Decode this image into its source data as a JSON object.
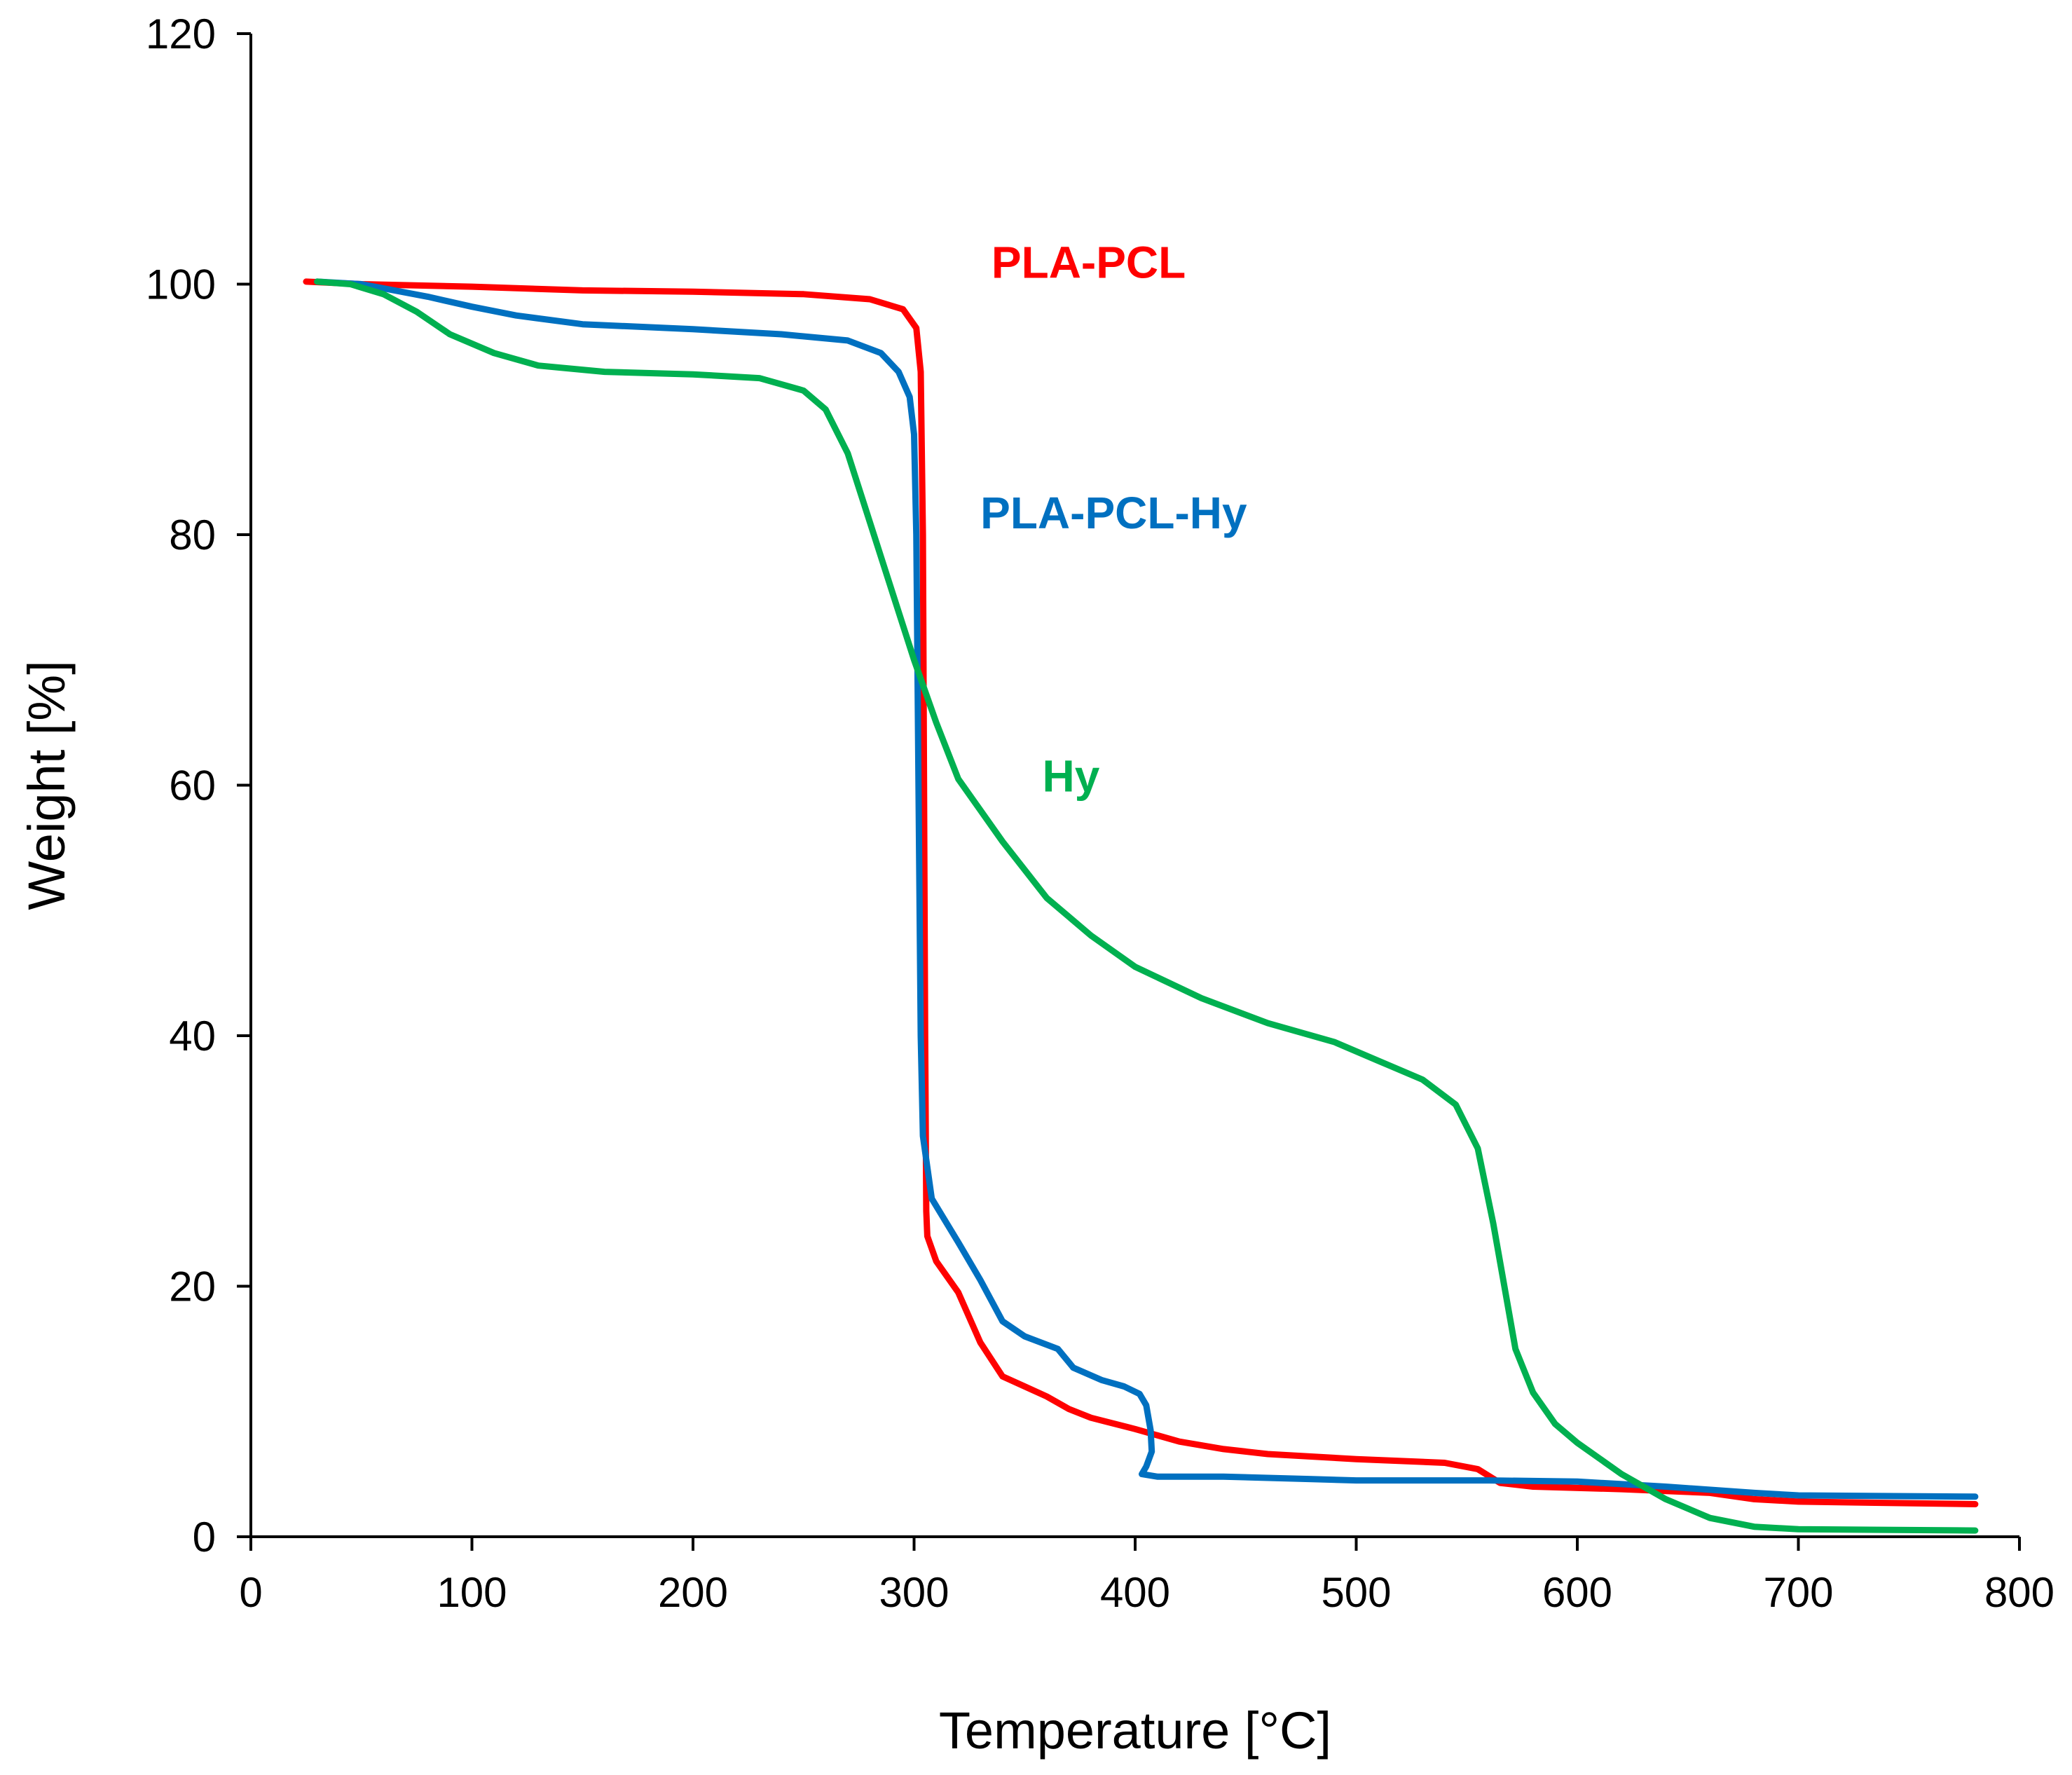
{
  "chart_data": {
    "type": "line",
    "title": "",
    "xlabel": "Temperature [°C]",
    "ylabel": "Weight [%]",
    "xlim": [
      0,
      800
    ],
    "ylim": [
      0,
      120
    ],
    "xticks": [
      0,
      100,
      200,
      300,
      400,
      500,
      600,
      700,
      800
    ],
    "yticks": [
      0,
      20,
      40,
      60,
      80,
      100,
      120
    ],
    "xtick_labels": [
      "0",
      "100",
      "200",
      "300",
      "400",
      "500",
      "600",
      "700",
      "800"
    ],
    "ytick_labels": [
      "0",
      "20",
      "40",
      "60",
      "80",
      "100",
      "120"
    ],
    "grid": false,
    "legend": "inline labels",
    "series": [
      {
        "name": "PLA-PCL",
        "color": "#ff0000",
        "label_at": [
          335,
          100.5
        ],
        "points": [
          [
            25,
            100.2
          ],
          [
            50,
            100
          ],
          [
            100,
            99.8
          ],
          [
            150,
            99.5
          ],
          [
            200,
            99.4
          ],
          [
            250,
            99.2
          ],
          [
            280,
            98.8
          ],
          [
            295,
            98
          ],
          [
            301,
            96.5
          ],
          [
            303,
            93
          ],
          [
            304,
            80
          ],
          [
            304.5,
            60
          ],
          [
            305,
            40
          ],
          [
            305.5,
            26
          ],
          [
            306,
            24
          ],
          [
            310,
            22
          ],
          [
            320,
            19.5
          ],
          [
            330,
            15.5
          ],
          [
            340,
            12.8
          ],
          [
            350,
            12
          ],
          [
            360,
            11.2
          ],
          [
            370,
            10.2
          ],
          [
            380,
            9.5
          ],
          [
            400,
            8.6
          ],
          [
            420,
            7.6
          ],
          [
            440,
            7
          ],
          [
            460,
            6.6
          ],
          [
            500,
            6.2
          ],
          [
            540,
            5.9
          ],
          [
            555,
            5.4
          ],
          [
            565,
            4.3
          ],
          [
            580,
            4
          ],
          [
            620,
            3.8
          ],
          [
            660,
            3.5
          ],
          [
            680,
            3
          ],
          [
            700,
            2.8
          ],
          [
            780,
            2.6
          ]
        ]
      },
      {
        "name": "PLA-PCL-Hy",
        "color": "#0070c0",
        "label_at": [
          330,
          80.5
        ],
        "points": [
          [
            30,
            100.2
          ],
          [
            50,
            100
          ],
          [
            80,
            99
          ],
          [
            100,
            98.2
          ],
          [
            120,
            97.5
          ],
          [
            150,
            96.8
          ],
          [
            200,
            96.4
          ],
          [
            240,
            96
          ],
          [
            270,
            95.5
          ],
          [
            285,
            94.5
          ],
          [
            293,
            93
          ],
          [
            298,
            91
          ],
          [
            300,
            88
          ],
          [
            301,
            80
          ],
          [
            302,
            60
          ],
          [
            303,
            40
          ],
          [
            304,
            32
          ],
          [
            308,
            27
          ],
          [
            320,
            23.5
          ],
          [
            330,
            20.5
          ],
          [
            340,
            17.2
          ],
          [
            350,
            16
          ],
          [
            365,
            15
          ],
          [
            372,
            13.5
          ],
          [
            385,
            12.5
          ],
          [
            395,
            12
          ],
          [
            402,
            11.4
          ],
          [
            405,
            10.5
          ],
          [
            407,
            8.5
          ],
          [
            407.5,
            6.8
          ],
          [
            405,
            5.6
          ],
          [
            403,
            5
          ],
          [
            410,
            4.8
          ],
          [
            440,
            4.8
          ],
          [
            480,
            4.6
          ],
          [
            500,
            4.5
          ],
          [
            560,
            4.5
          ],
          [
            600,
            4.4
          ],
          [
            640,
            4
          ],
          [
            680,
            3.5
          ],
          [
            700,
            3.3
          ],
          [
            780,
            3.2
          ]
        ]
      },
      {
        "name": "Hy",
        "color": "#00b050",
        "label_at": [
          358,
          59.5
        ],
        "points": [
          [
            30,
            100.2
          ],
          [
            45,
            100
          ],
          [
            60,
            99.2
          ],
          [
            75,
            97.8
          ],
          [
            90,
            96
          ],
          [
            110,
            94.5
          ],
          [
            130,
            93.5
          ],
          [
            160,
            93
          ],
          [
            200,
            92.8
          ],
          [
            230,
            92.5
          ],
          [
            250,
            91.5
          ],
          [
            260,
            90
          ],
          [
            270,
            86.5
          ],
          [
            280,
            81
          ],
          [
            290,
            75.5
          ],
          [
            300,
            70
          ],
          [
            310,
            65
          ],
          [
            320,
            60.5
          ],
          [
            340,
            55.5
          ],
          [
            360,
            51
          ],
          [
            380,
            48
          ],
          [
            400,
            45.5
          ],
          [
            430,
            43
          ],
          [
            460,
            41
          ],
          [
            490,
            39.5
          ],
          [
            510,
            38
          ],
          [
            530,
            36.5
          ],
          [
            545,
            34.5
          ],
          [
            555,
            31
          ],
          [
            562,
            25
          ],
          [
            567,
            20
          ],
          [
            572,
            15
          ],
          [
            580,
            11.5
          ],
          [
            590,
            9
          ],
          [
            600,
            7.5
          ],
          [
            620,
            5
          ],
          [
            640,
            3
          ],
          [
            660,
            1.5
          ],
          [
            680,
            0.8
          ],
          [
            700,
            0.6
          ],
          [
            780,
            0.5
          ]
        ]
      }
    ]
  }
}
